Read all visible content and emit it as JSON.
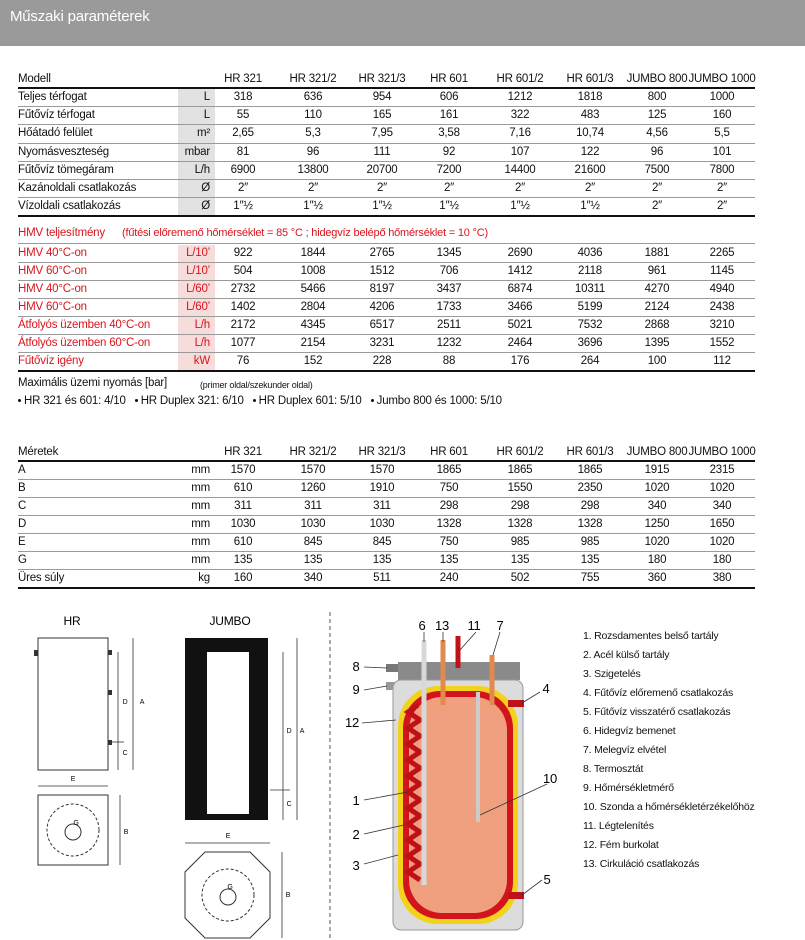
{
  "header": {
    "title": "Műszaki paraméterek"
  },
  "table1": {
    "header": "Modell",
    "models": [
      "HR 321",
      "HR 321/2",
      "HR 321/3",
      "HR 601",
      "HR 601/2",
      "HR 601/3",
      "JUMBO 800",
      "JUMBO 1000"
    ],
    "rows": [
      {
        "label": "Teljes térfogat",
        "unit": "L",
        "values": [
          "318",
          "636",
          "954",
          "606",
          "1212",
          "1818",
          "800",
          "1000"
        ]
      },
      {
        "label": "Fűtővíz térfogat",
        "unit": "L",
        "values": [
          "55",
          "110",
          "165",
          "161",
          "322",
          "483",
          "125",
          "160"
        ]
      },
      {
        "label": "Hőátadó felület",
        "unit": "m²",
        "values": [
          "2,65",
          "5,3",
          "7,95",
          "3,58",
          "7,16",
          "10,74",
          "4,56",
          "5,5"
        ]
      },
      {
        "label": "Nyomásveszteség",
        "unit": "mbar",
        "values": [
          "81",
          "96",
          "111",
          "92",
          "107",
          "122",
          "96",
          "101"
        ]
      },
      {
        "label": "Fűtővíz tömegáram",
        "unit": "L/h",
        "values": [
          "6900",
          "13800",
          "20700",
          "7200",
          "14400",
          "21600",
          "7500",
          "7800"
        ]
      },
      {
        "label": "Kazánoldali csatlakozás",
        "unit": "Ø",
        "values": [
          "2″",
          "2″",
          "2″",
          "2″",
          "2″",
          "2″",
          "2″",
          "2″"
        ]
      },
      {
        "label": "Vízoldali csatlakozás",
        "unit": "Ø",
        "values": [
          "1″½",
          "1″½",
          "1″½",
          "1″½",
          "1″½",
          "1″½",
          "2″",
          "2″"
        ]
      }
    ]
  },
  "hmv": {
    "title": "HMV teljesítmény",
    "note": "(fűtési előremenő hőmérséklet = 85 °C ; hidegvíz belépő hőmérséklet = 10 °C)",
    "rows": [
      {
        "label": "HMV 40°C-on",
        "unit": "L/10’",
        "values": [
          "922",
          "1844",
          "2765",
          "1345",
          "2690",
          "4036",
          "1881",
          "2265"
        ]
      },
      {
        "label": "HMV 60°C-on",
        "unit": "L/10’",
        "values": [
          "504",
          "1008",
          "1512",
          "706",
          "1412",
          "2118",
          "961",
          "1145"
        ]
      },
      {
        "label": "HMV 40°C-on",
        "unit": "L/60’",
        "values": [
          "2732",
          "5466",
          "8197",
          "3437",
          "6874",
          "10311",
          "4270",
          "4940"
        ]
      },
      {
        "label": "HMV 60°C-on",
        "unit": "L/60’",
        "values": [
          "1402",
          "2804",
          "4206",
          "1733",
          "3466",
          "5199",
          "2124",
          "2438"
        ]
      },
      {
        "label": "Átfolyós üzemben 40°C-on",
        "unit": "L/h",
        "values": [
          "2172",
          "4345",
          "6517",
          "2511",
          "5021",
          "7532",
          "2868",
          "3210"
        ]
      },
      {
        "label": "Átfolyós üzemben 60°C-on",
        "unit": "L/h",
        "values": [
          "1077",
          "2154",
          "3231",
          "1232",
          "2464",
          "3696",
          "1395",
          "1552"
        ]
      },
      {
        "label": "Fűtővíz igény",
        "unit": "kW",
        "values": [
          "76",
          "152",
          "228",
          "88",
          "176",
          "264",
          "100",
          "112"
        ]
      }
    ]
  },
  "pressure": {
    "title": "Maximális üzemi nyomás [bar]",
    "note": "(primer oldal/szekunder oldal)",
    "items": [
      "HR 321 és 601: 4/10",
      "HR Duplex 321: 6/10",
      "HR Duplex 601: 5/10",
      "Jumbo 800 és 1000: 5/10"
    ]
  },
  "table2": {
    "header": "Méretek",
    "models": [
      "HR 321",
      "HR 321/2",
      "HR 321/3",
      "HR 601",
      "HR 601/2",
      "HR 601/3",
      "JUMBO 800",
      "JUMBO 1000"
    ],
    "rows": [
      {
        "label": "A",
        "unit": "mm",
        "values": [
          "1570",
          "1570",
          "1570",
          "1865",
          "1865",
          "1865",
          "1915",
          "2315"
        ]
      },
      {
        "label": "B",
        "unit": "mm",
        "values": [
          "610",
          "1260",
          "1910",
          "750",
          "1550",
          "2350",
          "1020",
          "1020"
        ]
      },
      {
        "label": "C",
        "unit": "mm",
        "values": [
          "311",
          "311",
          "311",
          "298",
          "298",
          "298",
          "340",
          "340"
        ]
      },
      {
        "label": "D",
        "unit": "mm",
        "values": [
          "1030",
          "1030",
          "1030",
          "1328",
          "1328",
          "1328",
          "1250",
          "1650"
        ]
      },
      {
        "label": "E",
        "unit": "mm",
        "values": [
          "610",
          "845",
          "845",
          "750",
          "985",
          "985",
          "1020",
          "1020"
        ]
      },
      {
        "label": "G",
        "unit": "mm",
        "values": [
          "135",
          "135",
          "135",
          "135",
          "135",
          "135",
          "180",
          "180"
        ]
      },
      {
        "label": "Üres súly",
        "unit": "kg",
        "values": [
          "160",
          "340",
          "511",
          "240",
          "502",
          "755",
          "360",
          "380"
        ]
      }
    ]
  },
  "diagrams": {
    "hr": {
      "title": "HR",
      "labels": [
        "D",
        "A",
        "C",
        "E",
        "G",
        "B"
      ]
    },
    "jumbo": {
      "title": "JUMBO",
      "labels": [
        "D",
        "A",
        "C",
        "E",
        "G",
        "B"
      ]
    },
    "callouts": [
      "6",
      "13",
      "11",
      "7",
      "8",
      "9",
      "4",
      "12",
      "10",
      "1",
      "2",
      "3",
      "5"
    ]
  },
  "legend": [
    "1. Rozsdamentes belső tartály",
    "2. Acél külső tartály",
    "3. Szigetelés",
    "4. Fűtővíz előremenő csatlakozás",
    "5. Fűtővíz visszatérő csatlakozás",
    "6. Hidegvíz bemenet",
    "7. Melegvíz elvétel",
    "8. Termosztát",
    "9. Hőmérsékletmérő",
    "10. Szonda a hőmérsékletérzékelőhöz",
    "11. Légtelenítés",
    "12. Fém burkolat",
    "13. Cirkuláció csatlakozás"
  ]
}
